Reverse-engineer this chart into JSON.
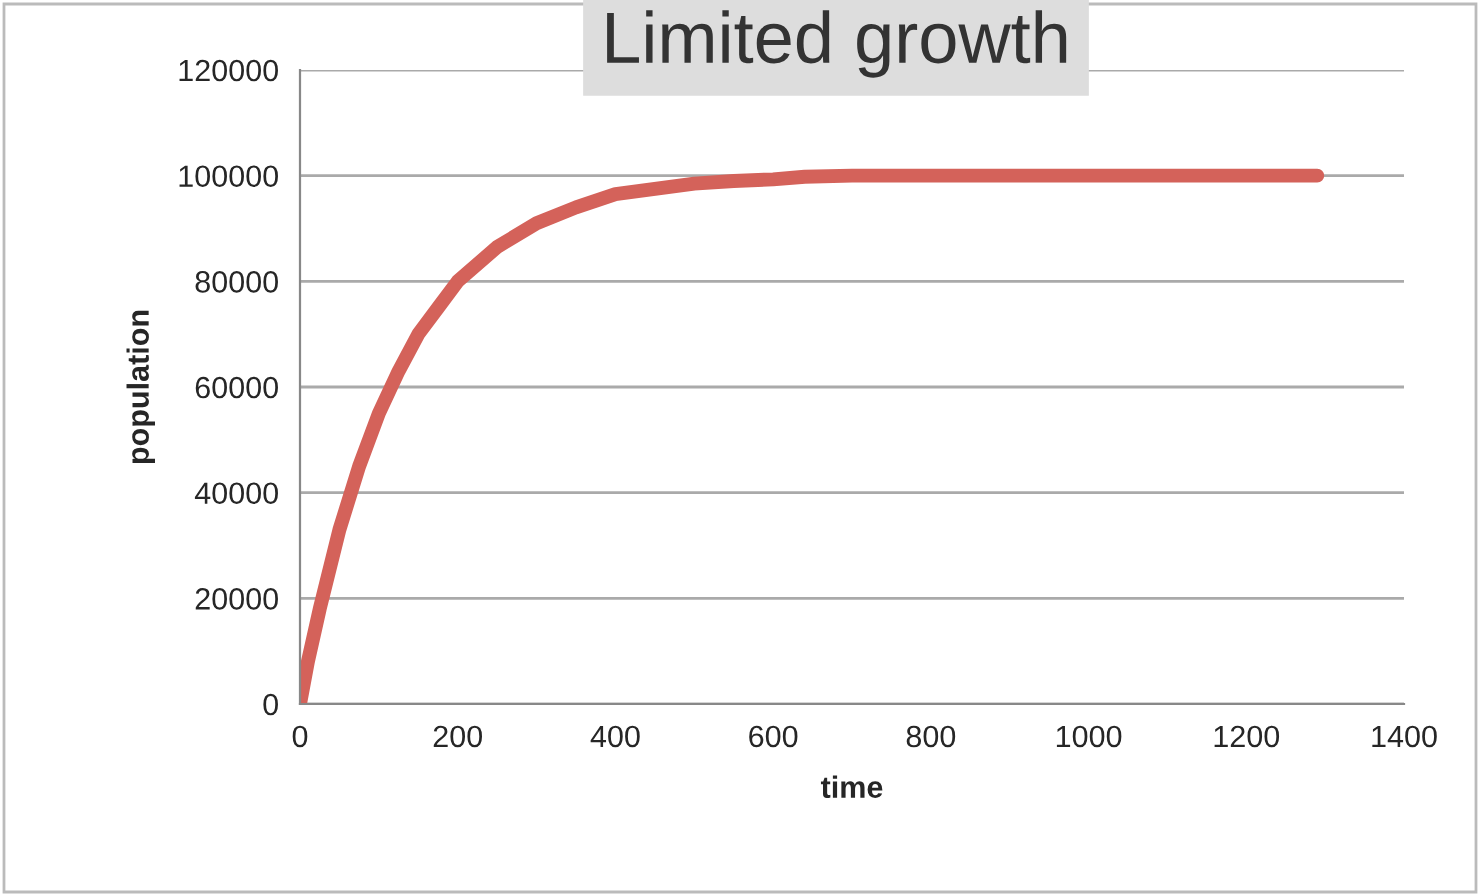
{
  "chart_data": {
    "type": "line",
    "title": "Limited growth",
    "xlabel": "time",
    "ylabel": "population",
    "series": [
      {
        "color": "#d4625a",
        "x": [
          0,
          10,
          25,
          50,
          75,
          100,
          125,
          150,
          175,
          200,
          250,
          300,
          350,
          400,
          450,
          500,
          550,
          600,
          640,
          700,
          800,
          1000,
          1290
        ],
        "values": [
          0,
          8000,
          18000,
          33000,
          45000,
          55000,
          63000,
          70000,
          75000,
          80000,
          86500,
          91000,
          94000,
          96500,
          97500,
          98500,
          99000,
          99300,
          99800,
          100000,
          100000,
          100000,
          100000
        ]
      }
    ],
    "xlim": [
      0,
      1400
    ],
    "xticks": [
      0,
      200,
      400,
      600,
      800,
      1000,
      1200,
      1400
    ],
    "ylim": [
      0,
      120000
    ],
    "yticks": [
      0,
      20000,
      40000,
      60000,
      80000,
      100000,
      120000
    ],
    "grid": "y",
    "legend": false,
    "marker": "none",
    "line_style": "solid"
  }
}
